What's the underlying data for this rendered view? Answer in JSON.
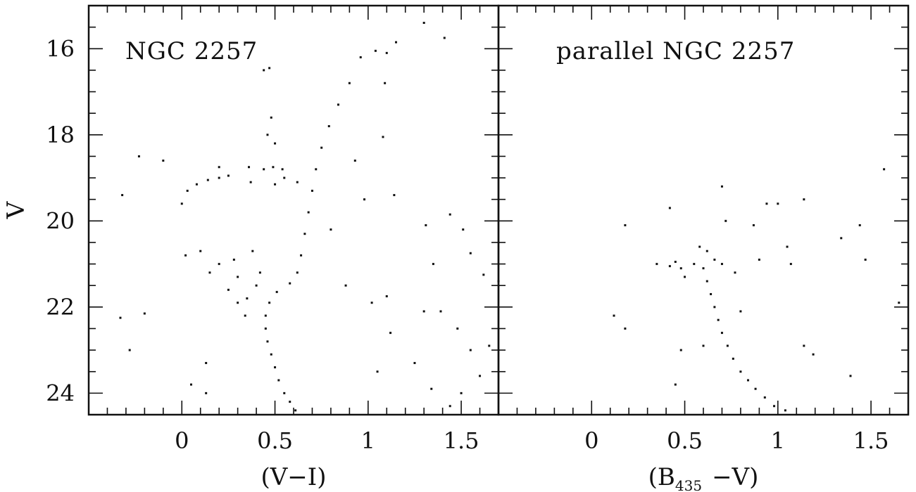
{
  "chart_data": [
    {
      "type": "scatter",
      "panel": "left",
      "title": "NGC 2257",
      "xlabel": "(V−I)",
      "ylabel": "V",
      "xlim": [
        -0.5,
        1.7
      ],
      "ylim": [
        24.5,
        15
      ],
      "y_inverted": true,
      "xticks": [
        0,
        0.5,
        1,
        1.5
      ],
      "xtick_labels": [
        "0",
        "0.5",
        "1",
        "1.5"
      ],
      "yticks": [
        16,
        18,
        20,
        22,
        24
      ],
      "ytick_labels": [
        "16",
        "18",
        "20",
        "22",
        "24"
      ],
      "grid": false,
      "series": [
        {
          "color": "#111111",
          "points": [
            [
              0.61,
              24.4
            ],
            [
              0.58,
              24.2
            ],
            [
              0.55,
              24.0
            ],
            [
              0.52,
              23.7
            ],
            [
              0.5,
              23.4
            ],
            [
              0.48,
              23.1
            ],
            [
              0.46,
              22.8
            ],
            [
              0.45,
              22.5
            ],
            [
              0.45,
              22.2
            ],
            [
              0.47,
              21.9
            ],
            [
              0.51,
              21.65
            ],
            [
              0.58,
              21.45
            ],
            [
              0.62,
              21.2
            ],
            [
              0.64,
              20.8
            ],
            [
              0.66,
              20.3
            ],
            [
              0.68,
              19.8
            ],
            [
              0.7,
              19.3
            ],
            [
              0.72,
              18.8
            ],
            [
              0.75,
              18.3
            ],
            [
              0.79,
              17.8
            ],
            [
              0.84,
              17.3
            ],
            [
              0.9,
              16.8
            ],
            [
              0.96,
              16.2
            ],
            [
              0.0,
              19.6
            ],
            [
              0.03,
              19.3
            ],
            [
              0.08,
              19.15
            ],
            [
              0.14,
              19.05
            ],
            [
              0.2,
              19.0
            ],
            [
              0.25,
              18.95
            ],
            [
              0.2,
              18.75
            ],
            [
              0.44,
              16.5
            ],
            [
              0.47,
              16.45
            ],
            [
              0.48,
              17.6
            ],
            [
              0.46,
              18.0
            ],
            [
              0.5,
              18.2
            ],
            [
              0.44,
              18.8
            ],
            [
              0.49,
              18.75
            ],
            [
              0.54,
              18.8
            ],
            [
              0.36,
              18.75
            ],
            [
              0.37,
              19.1
            ],
            [
              0.5,
              19.15
            ],
            [
              0.55,
              19.0
            ],
            [
              0.62,
              19.1
            ],
            [
              0.3,
              21.3
            ],
            [
              0.25,
              21.6
            ],
            [
              0.35,
              21.8
            ],
            [
              0.4,
              21.5
            ],
            [
              0.2,
              21.0
            ],
            [
              0.15,
              21.2
            ],
            [
              0.3,
              21.9
            ],
            [
              0.42,
              21.2
            ],
            [
              0.1,
              20.7
            ],
            [
              0.38,
              20.7
            ],
            [
              0.28,
              20.9
            ],
            [
              0.34,
              22.2
            ],
            [
              -0.33,
              22.25
            ],
            [
              -0.2,
              22.15
            ],
            [
              -0.28,
              23.0
            ],
            [
              0.02,
              20.8
            ],
            [
              0.13,
              23.3
            ],
            [
              0.05,
              23.8
            ],
            [
              0.13,
              24.0
            ],
            [
              1.04,
              16.05
            ],
            [
              1.15,
              15.85
            ],
            [
              1.3,
              15.4
            ],
            [
              1.41,
              15.75
            ],
            [
              1.1,
              16.1
            ],
            [
              1.09,
              16.8
            ],
            [
              1.08,
              18.05
            ],
            [
              1.14,
              19.4
            ],
            [
              1.31,
              20.1
            ],
            [
              1.44,
              19.85
            ],
            [
              1.51,
              20.2
            ],
            [
              1.55,
              20.75
            ],
            [
              1.35,
              21.0
            ],
            [
              1.62,
              21.25
            ],
            [
              1.7,
              21.4
            ],
            [
              1.02,
              21.9
            ],
            [
              1.1,
              21.75
            ],
            [
              1.12,
              22.6
            ],
            [
              1.3,
              22.1
            ],
            [
              1.39,
              22.1
            ],
            [
              1.48,
              22.5
            ],
            [
              1.55,
              23.0
            ],
            [
              1.05,
              23.5
            ],
            [
              1.25,
              23.3
            ],
            [
              1.34,
              23.9
            ],
            [
              1.44,
              24.3
            ],
            [
              1.5,
              24.0
            ],
            [
              1.6,
              23.6
            ],
            [
              1.65,
              22.9
            ],
            [
              -0.23,
              18.5
            ],
            [
              -0.1,
              18.6
            ],
            [
              -0.32,
              19.4
            ],
            [
              0.93,
              18.6
            ],
            [
              0.98,
              19.5
            ],
            [
              0.8,
              20.2
            ],
            [
              0.88,
              21.5
            ]
          ]
        }
      ]
    },
    {
      "type": "scatter",
      "panel": "right",
      "title": "parallel NGC 2257",
      "xlabel": "(B435 −V)",
      "xlabel_main_left": "(B",
      "xlabel_sub": "435",
      "xlabel_main_right": "−V)",
      "ylabel": "",
      "xlim": [
        -0.5,
        1.7
      ],
      "ylim": [
        24.5,
        15
      ],
      "y_inverted": true,
      "xticks": [
        0,
        0.5,
        1,
        1.5
      ],
      "xtick_labels": [
        "0",
        "0.5",
        "1",
        "1.5"
      ],
      "grid": false,
      "series": [
        {
          "color": "#111111",
          "points": [
            [
              0.55,
              21.0
            ],
            [
              0.6,
              21.1
            ],
            [
              0.62,
              21.4
            ],
            [
              0.64,
              21.7
            ],
            [
              0.66,
              22.0
            ],
            [
              0.68,
              22.3
            ],
            [
              0.7,
              22.6
            ],
            [
              0.73,
              22.9
            ],
            [
              0.76,
              23.2
            ],
            [
              0.8,
              23.5
            ],
            [
              0.84,
              23.7
            ],
            [
              0.88,
              23.9
            ],
            [
              0.93,
              24.1
            ],
            [
              0.98,
              24.3
            ],
            [
              1.04,
              24.4
            ],
            [
              0.35,
              21.0
            ],
            [
              0.42,
              21.05
            ],
            [
              0.48,
              21.1
            ],
            [
              0.5,
              21.3
            ],
            [
              0.45,
              20.95
            ],
            [
              0.62,
              20.7
            ],
            [
              0.58,
              20.6
            ],
            [
              0.66,
              20.9
            ],
            [
              0.7,
              19.2
            ],
            [
              0.42,
              19.7
            ],
            [
              0.18,
              20.1
            ],
            [
              0.72,
              20.0
            ],
            [
              0.87,
              20.1
            ],
            [
              0.94,
              19.6
            ],
            [
              1.0,
              19.6
            ],
            [
              1.05,
              20.6
            ],
            [
              1.14,
              19.5
            ],
            [
              1.34,
              20.4
            ],
            [
              1.47,
              20.9
            ],
            [
              1.44,
              20.1
            ],
            [
              1.57,
              18.8
            ],
            [
              1.65,
              21.9
            ],
            [
              0.12,
              22.2
            ],
            [
              0.18,
              22.5
            ],
            [
              0.48,
              23.0
            ],
            [
              0.45,
              23.8
            ],
            [
              1.14,
              22.9
            ],
            [
              1.19,
              23.1
            ],
            [
              1.39,
              23.6
            ],
            [
              0.7,
              21.0
            ],
            [
              0.77,
              21.2
            ],
            [
              0.9,
              20.9
            ],
            [
              0.8,
              22.1
            ],
            [
              1.07,
              21.0
            ],
            [
              0.6,
              22.9
            ]
          ]
        }
      ]
    }
  ]
}
